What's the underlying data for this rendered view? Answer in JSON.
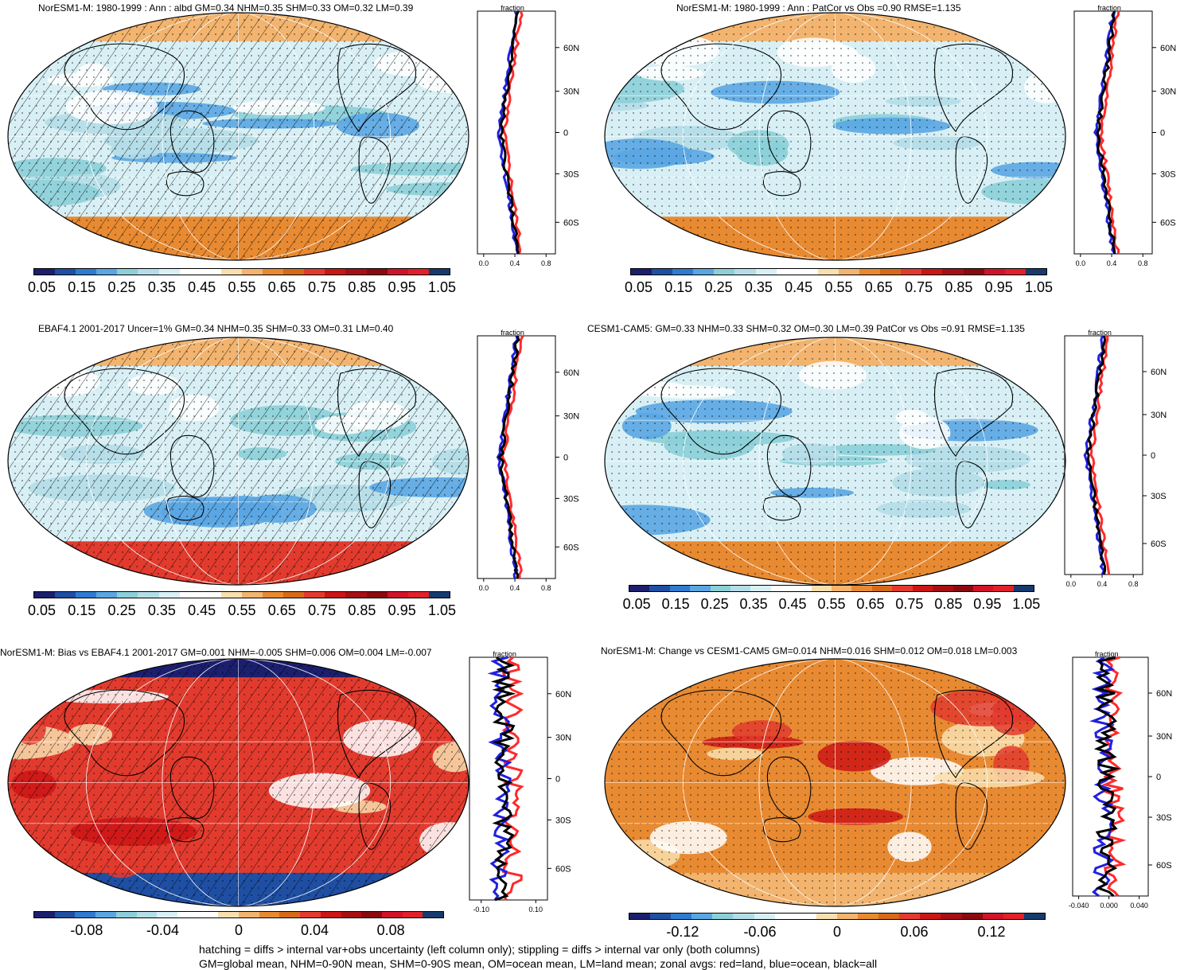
{
  "panels": [
    {
      "title": "NorESM1-M: 1980-1999 : Ann : albd GM=0.34 NHM=0.35 SHM=0.33 OM=0.32 LM=0.39",
      "scale": "abs",
      "hatched": true,
      "colorbar_labels": [
        "0.05",
        "0.15",
        "0.25",
        "0.35",
        "0.45",
        "0.55",
        "0.65",
        "0.75",
        "0.85",
        "0.95",
        "1.05"
      ],
      "zonal_header": "fraction",
      "zonal_lat_labels": [
        "60N",
        "30N",
        "0",
        "30S",
        "60S"
      ],
      "zonal_x_labels": [
        "0.0",
        "0.4",
        "0.8"
      ]
    },
    {
      "title": "NorESM1-M: 1980-1999 : Ann : PatCor vs Obs =0.90 RMSE=1.135",
      "scale": "abs",
      "hatched": false,
      "colorbar_labels": [
        "0.05",
        "0.15",
        "0.25",
        "0.35",
        "0.45",
        "0.55",
        "0.65",
        "0.75",
        "0.85",
        "0.95",
        "1.05"
      ],
      "zonal_header": "fraction",
      "zonal_lat_labels": [
        "60N",
        "30N",
        "0",
        "30S",
        "60S"
      ],
      "zonal_x_labels": [
        "0.0",
        "0.4",
        "0.8"
      ]
    },
    {
      "title": "EBAF4.1 2001-2017 Uncer=1% GM=0.34 NHM=0.35 SHM=0.33 OM=0.31 LM=0.40",
      "scale": "abs",
      "hatched": true,
      "colorbar_labels": [
        "0.05",
        "0.15",
        "0.25",
        "0.35",
        "0.45",
        "0.55",
        "0.65",
        "0.75",
        "0.85",
        "0.95",
        "1.05"
      ],
      "zonal_header": "fraction",
      "zonal_lat_labels": [
        "60N",
        "30N",
        "0",
        "30S",
        "60S"
      ],
      "zonal_x_labels": [
        "0.0",
        "0.4",
        "0.8"
      ]
    },
    {
      "title": "CESM1-CAM5: GM=0.33 NHM=0.33 SHM=0.32 OM=0.30 LM=0.39 PatCor vs Obs =0.91 RMSE=1.135",
      "scale": "abs",
      "hatched": false,
      "colorbar_labels": [
        "0.05",
        "0.15",
        "0.25",
        "0.35",
        "0.45",
        "0.55",
        "0.65",
        "0.75",
        "0.85",
        "0.95",
        "1.05"
      ],
      "zonal_header": "fraction",
      "zonal_lat_labels": [
        "60N",
        "30N",
        "0",
        "30S",
        "60S"
      ],
      "zonal_x_labels": [
        "0.0",
        "0.4",
        "0.8"
      ]
    },
    {
      "title": "NorESM1-M: Bias vs EBAF4.1 2001-2017 GM=0.001 NHM=-0.005 SHM=0.006 OM=0.004 LM=-0.007",
      "scale": "diff",
      "hatched": true,
      "colorbar_labels": [
        "-0.08",
        "-0.04",
        "0",
        "0.04",
        "0.08"
      ],
      "zonal_header": "fraction",
      "zonal_lat_labels": [
        "60N",
        "30N",
        "0",
        "30S",
        "60S"
      ],
      "zonal_x_labels": [
        "-0.10",
        "0.10"
      ]
    },
    {
      "title": "NorESM1-M: Change vs CESM1-CAM5 GM=0.014 NHM=0.016 SHM=0.012 OM=0.018 LM=0.003",
      "scale": "diff",
      "hatched": false,
      "colorbar_labels": [
        "-0.12",
        "-0.06",
        "0",
        "0.06",
        "0.12"
      ],
      "zonal_header": "fraction",
      "zonal_lat_labels": [
        "60N",
        "30N",
        "0",
        "30S",
        "60S"
      ],
      "zonal_x_labels": [
        "-0.040",
        "0.000",
        "0.040"
      ]
    }
  ],
  "colors": {
    "abs_palette": [
      "#1b1f6e",
      "#1f4fa3",
      "#2f7bd1",
      "#5aa6e3",
      "#8ccfd8",
      "#b4dde8",
      "#d8f0f5",
      "#ffffff",
      "#ffffff",
      "#f9dfae",
      "#f2b46e",
      "#e88a32",
      "#d46a1a",
      "#e23b2e",
      "#cc1515",
      "#a50f15",
      "#8a0a10",
      "#d0132a",
      "#e0202a",
      "#153a6e"
    ],
    "diff_palette": [
      "#1b1f6e",
      "#1f4fa3",
      "#2f7bd1",
      "#5aa6e3",
      "#8ccfd8",
      "#b4dde8",
      "#d8f0f5",
      "#ffffff",
      "#ffffff",
      "#f9dfae",
      "#f2b46e",
      "#e88a32",
      "#d46a1a",
      "#e23b2e",
      "#cc1515",
      "#a50f15",
      "#8a0a10",
      "#d0132a",
      "#e0202a",
      "#153a6e"
    ],
    "land_line": "#ff2a2a",
    "ocean_line": "#2020e0",
    "all_line": "#000000"
  },
  "footer": {
    "line1": "hatching = diffs > internal var+obs uncertainty (left column only); stippling = diffs > internal var only (both columns)",
    "line2": "GM=global mean, NHM=0-90N mean, SHM=0-90S mean, OM=ocean mean, LM=land mean; zonal avgs: red=land, blue=ocean, black=all"
  }
}
